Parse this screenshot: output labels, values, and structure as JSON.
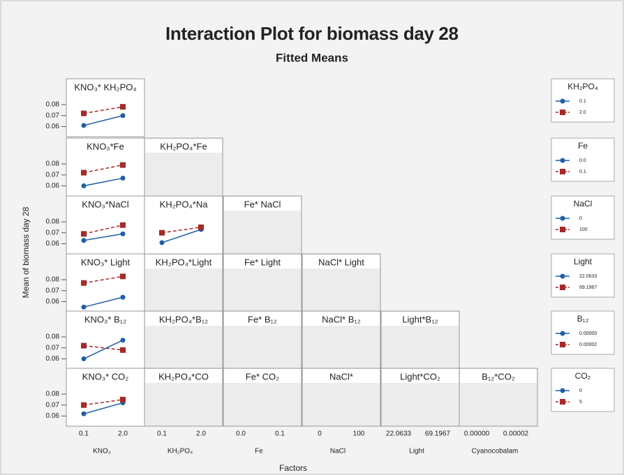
{
  "figure": {
    "title": "Interaction Plot for biomass day 28",
    "subtitle": "Fitted Means",
    "y_label": "Mean of biomass day 28",
    "x_label": "Factors",
    "ylim": [
      0.052,
      0.087
    ],
    "yticks": [
      0.06,
      0.07,
      0.08
    ],
    "columns": [
      {
        "name": "KNO₃",
        "levels": [
          "0.1",
          "2.0"
        ]
      },
      {
        "name": "KH₂PO₄",
        "levels": [
          "0.1",
          "2.0"
        ]
      },
      {
        "name": "Fe",
        "levels": [
          "0.0",
          "0.1"
        ]
      },
      {
        "name": "NaCl",
        "levels": [
          "0",
          "100"
        ]
      },
      {
        "name": "Light",
        "levels": [
          "22.0633",
          "69.1967"
        ]
      },
      {
        "name": "Cyanocobalam",
        "levels": [
          "0.00000",
          "0.00002"
        ]
      }
    ]
  },
  "legends": [
    {
      "title": "KH₂PO₄",
      "entries": [
        {
          "name": "0.1",
          "color": "#1f5fa8"
        },
        {
          "name": "2.0",
          "color": "#a52a2a"
        }
      ]
    },
    {
      "title": "Fe",
      "entries": [
        {
          "name": "0.0",
          "color": "#1f5fa8"
        },
        {
          "name": "0.1",
          "color": "#a52a2a"
        }
      ]
    },
    {
      "title": "NaCl",
      "entries": [
        {
          "name": "0",
          "color": "#1f5fa8"
        },
        {
          "name": "100",
          "color": "#a52a2a"
        }
      ]
    },
    {
      "title": "Light",
      "entries": [
        {
          "name": "22.0633",
          "color": "#1f5fa8"
        },
        {
          "name": "69.1967",
          "color": "#a52a2a"
        }
      ]
    },
    {
      "title": "B₁₂",
      "entries": [
        {
          "name": "0.00000",
          "color": "#1f5fa8"
        },
        {
          "name": "0.00002",
          "color": "#a52a2a"
        }
      ]
    },
    {
      "title": "CO₂",
      "entries": [
        {
          "name": "0",
          "color": "#1f5fa8"
        },
        {
          "name": "5",
          "color": "#a52a2a"
        }
      ]
    }
  ],
  "chart_data": [
    [
      {
        "type": "line",
        "title": "KNO₃* KH₂PO₄",
        "series": [
          {
            "color": "#1f5fa8",
            "values": [
              0.061,
              0.07
            ]
          },
          {
            "color": "#a52a2a",
            "values": [
              0.072,
              0.078
            ]
          }
        ]
      }
    ],
    [
      {
        "type": "line",
        "title": "KNO₃*Fe",
        "series": [
          {
            "color": "#1f5fa8",
            "values": [
              0.06,
              0.067
            ]
          },
          {
            "color": "#a52a2a",
            "values": [
              0.072,
              0.079
            ]
          }
        ]
      },
      {
        "title": "KH₂PO₄*Fe"
      }
    ],
    [
      {
        "type": "line",
        "title": "KNO₃*NaCl",
        "series": [
          {
            "color": "#1f5fa8",
            "values": [
              0.063,
              0.069
            ]
          },
          {
            "color": "#a52a2a",
            "values": [
              0.069,
              0.077
            ]
          }
        ]
      },
      {
        "type": "line",
        "title": "KH₂PO₄*Na",
        "series": [
          {
            "color": "#1f5fa8",
            "values": [
              0.061,
              0.073
            ]
          },
          {
            "color": "#a52a2a",
            "values": [
              0.07,
              0.075
            ]
          }
        ]
      },
      {
        "title": "Fe* NaCl"
      }
    ],
    [
      {
        "type": "line",
        "title": "KNO₃* Light",
        "series": [
          {
            "color": "#1f5fa8",
            "values": [
              0.055,
              0.064
            ]
          },
          {
            "color": "#a52a2a",
            "values": [
              0.077,
              0.083
            ]
          }
        ]
      },
      {
        "title": "KH₂PO₄*Light"
      },
      {
        "title": "Fe* Light"
      },
      {
        "title": "NaCl* Light"
      }
    ],
    [
      {
        "type": "line",
        "title": "KNO₃* B₁₂",
        "series": [
          {
            "color": "#1f5fa8",
            "values": [
              0.06,
              0.077
            ]
          },
          {
            "color": "#a52a2a",
            "values": [
              0.072,
              0.068
            ]
          }
        ]
      },
      {
        "title": "KH₂PO₄*B₁₂"
      },
      {
        "title": "Fe* B₁₂"
      },
      {
        "title": "NaCl* B₁₂"
      },
      {
        "title": "Light*B₁₂"
      }
    ],
    [
      {
        "type": "line",
        "title": "KNO₃* CO₂",
        "series": [
          {
            "color": "#1f5fa8",
            "values": [
              0.062,
              0.072
            ]
          },
          {
            "color": "#a52a2a",
            "values": [
              0.07,
              0.075
            ]
          }
        ]
      },
      {
        "title": "KH₂PO₄*CO"
      },
      {
        "title": "Fe* CO₂"
      },
      {
        "title": "NaCl*"
      },
      {
        "title": "Light*CO₂"
      },
      {
        "title": "B₁₂*CO₂"
      }
    ]
  ]
}
